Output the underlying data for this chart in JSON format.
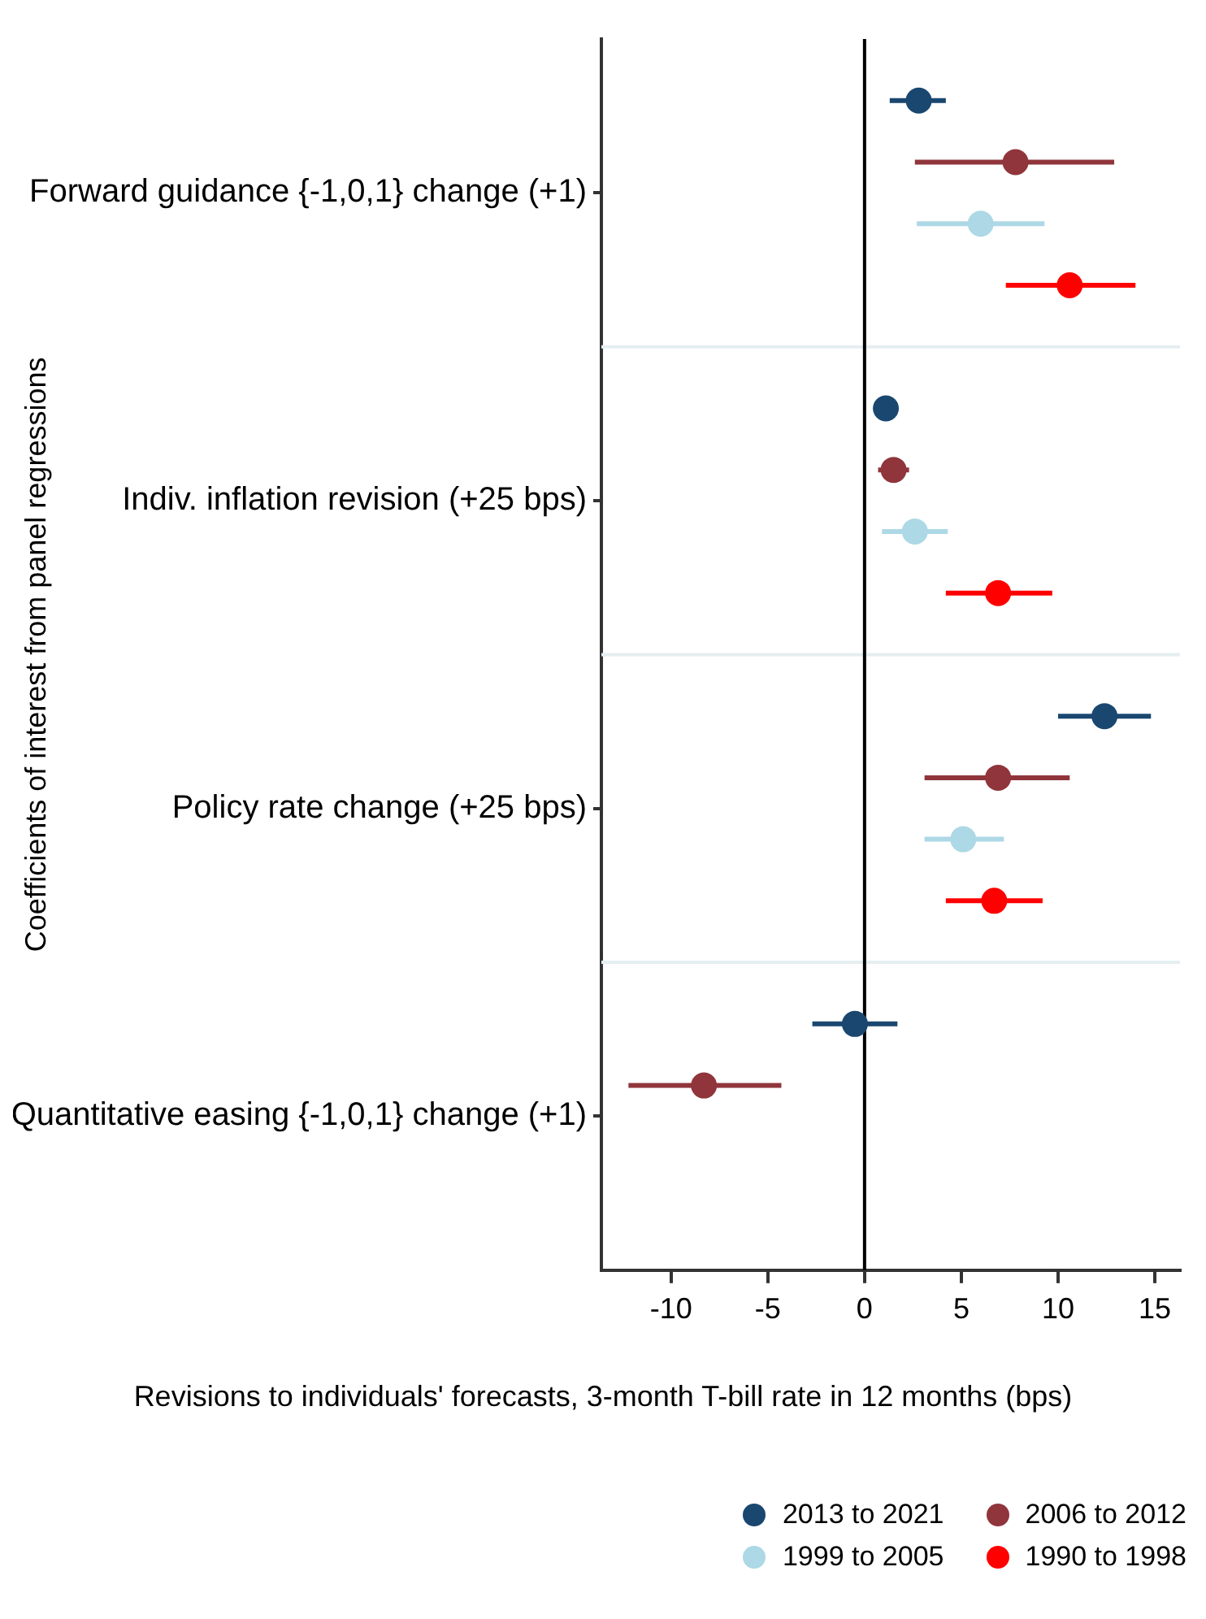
{
  "chart_data": {
    "type": "scatter",
    "orientation": "horizontal",
    "xlabel": "Revisions to individuals' forecasts, 3-month T-bill rate in 12 months (bps)",
    "ylabel": "Coefficients of interest from panel regressions",
    "categories": [
      "Forward guidance {-1,0,1} change (+1)",
      "Indiv. inflation revision (+25 bps)",
      "Policy rate change (+25 bps)",
      "Quantitative easing {-1,0,1} change (+1)"
    ],
    "series": [
      {
        "name": "2013 to 2021",
        "color": "#1a476f",
        "values": [
          2.8,
          1.1,
          12.4,
          -0.5
        ],
        "errors": [
          [
            1.3,
            4.2
          ],
          null,
          [
            10.0,
            14.8
          ],
          [
            -2.7,
            1.7
          ]
        ]
      },
      {
        "name": "2006 to 2012",
        "color": "#90353b",
        "values": [
          7.8,
          1.5,
          6.9,
          -8.3
        ],
        "errors": [
          [
            2.6,
            12.9
          ],
          [
            0.7,
            2.3
          ],
          [
            3.1,
            10.6
          ],
          [
            -12.2,
            -4.3
          ]
        ]
      },
      {
        "name": "1999 to 2005",
        "color": "#add8e6",
        "values": [
          6.0,
          2.6,
          5.1,
          null
        ],
        "errors": [
          [
            2.7,
            9.3
          ],
          [
            0.9,
            4.3
          ],
          [
            3.1,
            7.2
          ],
          null
        ]
      },
      {
        "name": "1990 to 1998",
        "color": "#ff0000",
        "values": [
          10.6,
          6.9,
          6.7,
          null
        ],
        "errors": [
          [
            7.3,
            14.0
          ],
          [
            4.2,
            9.7
          ],
          [
            4.2,
            9.2
          ],
          null
        ]
      }
    ],
    "xlim": [
      -13.6,
      16.3
    ],
    "xticks": [
      -10,
      -5,
      0,
      5,
      10,
      15
    ],
    "ref_lines": [
      {
        "axis": "x",
        "value": 0,
        "color": "#000000"
      }
    ],
    "grid": "y",
    "legend": "bottom right",
    "marker": "circle"
  }
}
